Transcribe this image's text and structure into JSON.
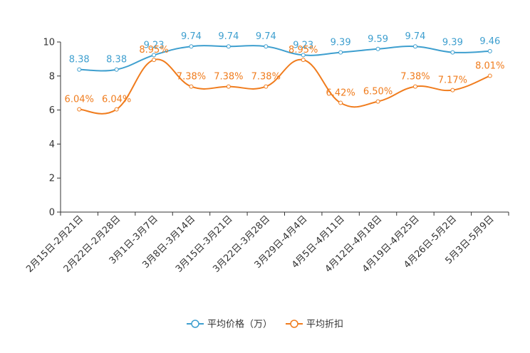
{
  "chart_data": {
    "type": "line",
    "title": "",
    "xlabel": "",
    "ylabel": "",
    "ylim": [
      0,
      10
    ],
    "yticks": [
      0,
      2,
      4,
      6,
      8,
      10
    ],
    "grid": false,
    "legend_position": "bottom",
    "categories": [
      "2月15日-2月21日",
      "2月22日-2月28日",
      "3月1日-3月7日",
      "3月8日-3月14日",
      "3月15日-3月21日",
      "3月22日-3月28日",
      "3月29日-4月4日",
      "4月5日-4月11日",
      "4月12日-4月18日",
      "4月19日-4月25日",
      "4月26日-5月2日",
      "5月3日-5月9日"
    ],
    "series": [
      {
        "name": "平均价格（万）",
        "color": "#3e9fcf",
        "values": [
          8.38,
          8.38,
          9.23,
          9.74,
          9.74,
          9.74,
          9.23,
          9.39,
          9.59,
          9.74,
          9.39,
          9.46
        ],
        "labels": [
          "8.38",
          "8.38",
          "9.23",
          "9.74",
          "9.74",
          "9.74",
          "9.23",
          "9.39",
          "9.59",
          "9.74",
          "9.39",
          "9.46"
        ]
      },
      {
        "name": "平均折扣",
        "color": "#f07c1d",
        "values": [
          6.04,
          6.04,
          8.95,
          7.38,
          7.38,
          7.38,
          8.95,
          6.42,
          6.5,
          7.38,
          7.17,
          8.01
        ],
        "labels": [
          "6.04%",
          "6.04%",
          "8.95%",
          "7.38%",
          "7.38%",
          "7.38%",
          "8.95%",
          "6.42%",
          "6.50%",
          "7.38%",
          "7.17%",
          "8.01%"
        ]
      }
    ]
  }
}
